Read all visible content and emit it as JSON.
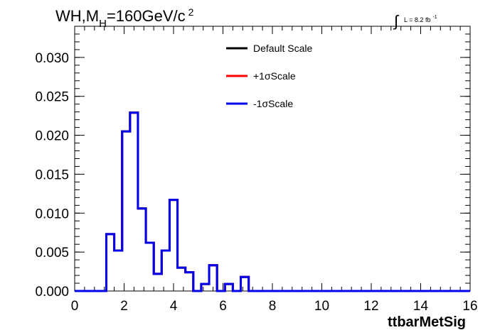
{
  "chart_data": {
    "type": "histogram",
    "title_main": "WH,M",
    "title_sub": "H",
    "title_rest": "=160GeV/c",
    "title_sup": "2",
    "lumi_label": "L = 8.2 fb",
    "lumi_sup": "-1",
    "xlabel": "ttbarMetSig",
    "xlim": [
      0,
      16
    ],
    "ylim": [
      0,
      0.034
    ],
    "x_ticks": [
      "0",
      "2",
      "4",
      "6",
      "8",
      "10",
      "12",
      "14",
      "16"
    ],
    "y_ticks": [
      "0.000",
      "0.005",
      "0.010",
      "0.015",
      "0.020",
      "0.025",
      "0.030"
    ],
    "bin_edges": [
      0,
      0.32,
      0.64,
      0.96,
      1.28,
      1.6,
      1.92,
      2.24,
      2.56,
      2.88,
      3.2,
      3.52,
      3.84,
      4.16,
      4.48,
      4.8,
      5.12,
      5.44,
      5.76,
      6.08,
      6.4,
      6.72,
      7.04,
      7.36,
      7.68,
      8,
      8.32,
      8.64,
      8.96,
      9.28,
      9.6,
      9.92,
      10.24,
      10.56,
      10.88,
      11.2,
      11.52,
      11.84,
      12.16,
      12.48,
      12.8,
      13.12,
      13.44,
      13.76,
      14.08,
      14.4,
      14.72,
      15.04,
      15.36,
      15.68,
      16
    ],
    "series": [
      {
        "name": "Default Scale",
        "color": "#000000",
        "values": [
          0,
          0,
          0,
          0,
          0.0073,
          0.0052,
          0.0205,
          0.0229,
          0.0106,
          0.0062,
          0.0022,
          0.0052,
          0.0117,
          0.003,
          0.0024,
          0,
          0.0009,
          0.0033,
          0,
          0.0009,
          0,
          0.0018,
          0,
          0,
          0,
          0,
          0,
          0,
          0,
          0,
          0,
          0,
          0,
          0,
          0,
          0,
          0,
          0,
          0,
          0,
          0,
          0,
          0,
          0,
          0,
          0,
          0,
          0,
          0,
          0
        ]
      },
      {
        "name": "+1σScale",
        "color": "#ff0000",
        "values": [
          0,
          0,
          0,
          0,
          0.0073,
          0.0052,
          0.0205,
          0.0229,
          0.0106,
          0.0062,
          0.0022,
          0.0052,
          0.0117,
          0.003,
          0.0024,
          0,
          0.0009,
          0.0033,
          0,
          0.0009,
          0,
          0.0018,
          0,
          0,
          0,
          0,
          0,
          0,
          0,
          0,
          0,
          0,
          0,
          0,
          0,
          0,
          0,
          0,
          0,
          0,
          0,
          0,
          0,
          0,
          0,
          0,
          0,
          0,
          0,
          0
        ]
      },
      {
        "name": "-1σScale",
        "color": "#0000ee",
        "values": [
          0,
          0,
          0,
          0,
          0.0073,
          0.0052,
          0.0205,
          0.0229,
          0.0106,
          0.0062,
          0.0022,
          0.0052,
          0.0117,
          0.003,
          0.0024,
          0,
          0.0009,
          0.0033,
          0,
          0.0009,
          0,
          0.0018,
          0,
          0,
          0,
          0,
          0,
          0,
          0,
          0,
          0,
          0,
          0,
          0,
          0,
          0,
          0,
          0,
          0,
          0,
          0,
          0,
          0,
          0,
          0,
          0,
          0,
          0,
          0,
          0
        ]
      }
    ],
    "grid": false,
    "legend_position": "top-center"
  }
}
